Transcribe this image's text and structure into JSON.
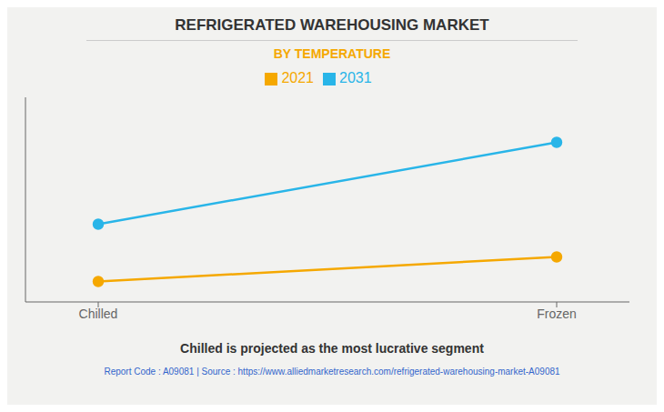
{
  "chart_data": {
    "type": "line",
    "title": "REFRIGERATED WAREHOUSING MARKET",
    "subtitle": "BY TEMPERATURE",
    "categories": [
      "Chilled",
      "Frozen"
    ],
    "series": [
      {
        "name": "2021",
        "color": "#F5A800",
        "values": [
          1.0,
          2.2
        ]
      },
      {
        "name": "2031",
        "color": "#29B5E8",
        "values": [
          3.8,
          7.8
        ]
      }
    ],
    "ylim": [
      0,
      10
    ],
    "yticks": [],
    "grid": false,
    "tick_labels": "x",
    "legend": "top",
    "marker": "circle",
    "annotations": [
      "Chilled is projected as the most lucrative segment",
      "Report Code : A09081  |  Source : https://www.alliedmarketresearch.com/refrigerated-warehousing-market-A09081"
    ]
  }
}
